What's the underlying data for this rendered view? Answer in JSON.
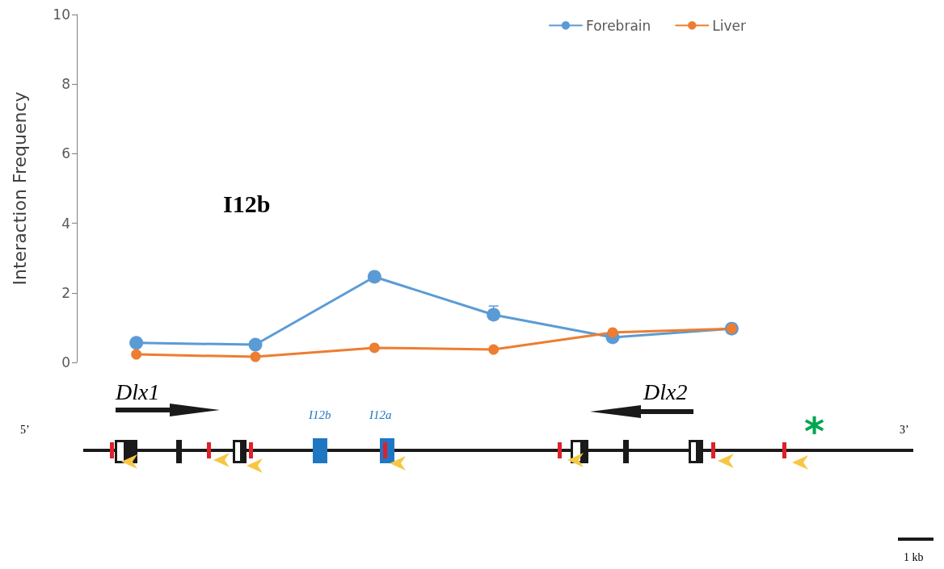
{
  "chart_data": {
    "type": "line",
    "ylabel": "Interaction Frequency",
    "categories": [
      null,
      null,
      null,
      null,
      null,
      null
    ],
    "series": [
      {
        "name": "Forebrain",
        "color": "#5b9bd5",
        "values": [
          0.56,
          0.51,
          2.46,
          1.37,
          0.72,
          0.97
        ],
        "errors": [
          null,
          null,
          0.05,
          0.25,
          null,
          null
        ]
      },
      {
        "name": "Liver",
        "color": "#ed7d31",
        "values": [
          0.23,
          0.16,
          0.42,
          0.37,
          0.86,
          0.97
        ]
      }
    ],
    "ylim": [
      0,
      10
    ],
    "yticks": [
      0,
      2,
      4,
      6,
      8,
      10
    ],
    "grid": false,
    "legend": "top right",
    "marker": "circle",
    "line_style": "solid",
    "annotations": [
      "I12b",
      "Dlx1",
      "Dlx2",
      "I12b",
      "I12a",
      "5’",
      "3’",
      "*",
      "1 kb"
    ]
  }
}
